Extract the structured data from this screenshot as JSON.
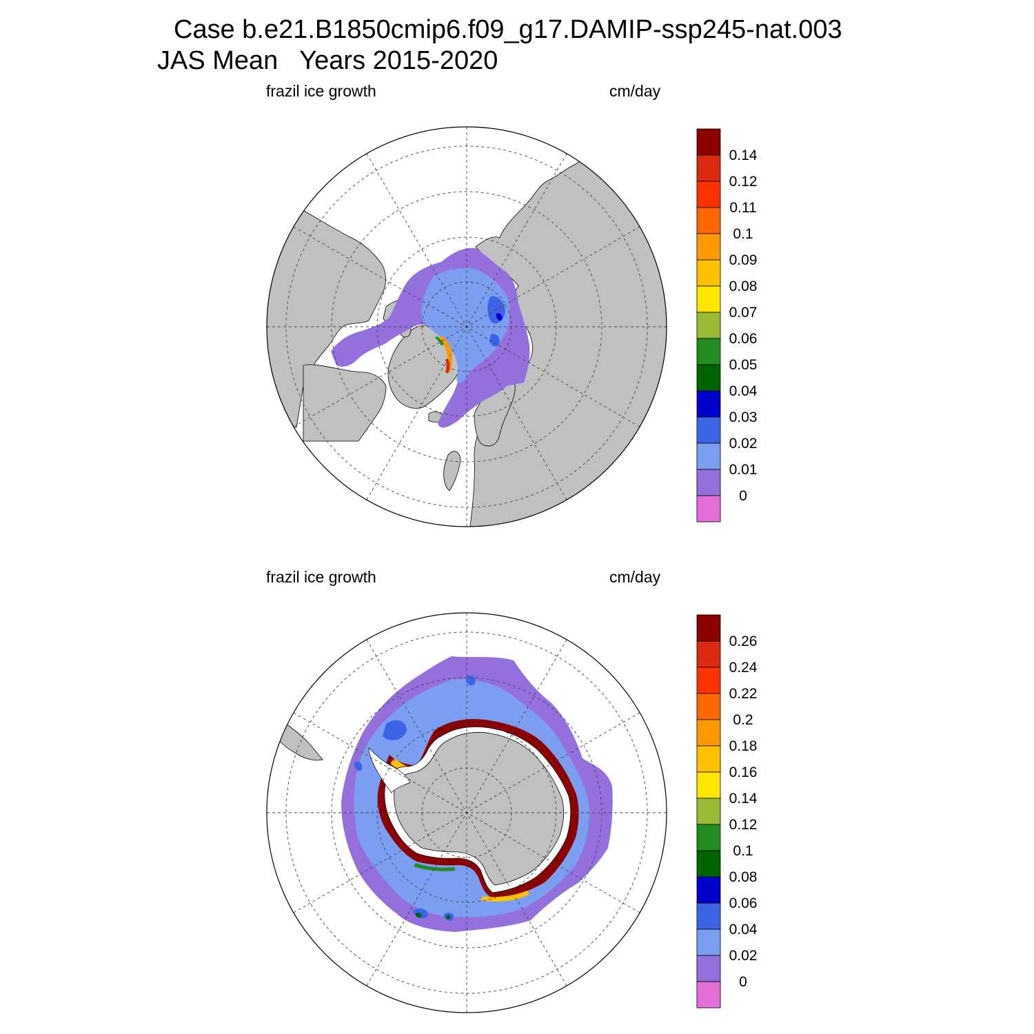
{
  "title": {
    "line1": "Case b.e21.B1850cmip6.f09_g17.DAMIP-ssp245-nat.003",
    "line2": "JAS Mean   Years 2015-2020"
  },
  "colors": {
    "land": "#c0c0c0",
    "ocean": "#ffffff",
    "outline": "#000000",
    "ice_shelf_white": "#ffffff",
    "palette": [
      "#e36fd6",
      "#9370db",
      "#7b9ef0",
      "#3c64e6",
      "#0000cd",
      "#006400",
      "#228b22",
      "#9aba34",
      "#ffe600",
      "#ffc000",
      "#ff9900",
      "#ff6600",
      "#ff3300",
      "#dc2a12",
      "#8b0000"
    ]
  },
  "panels": [
    {
      "id": "north",
      "left_label": "frazil ice growth",
      "right_label": "cm/day",
      "hemisphere": "Northern",
      "projection": "polar stereographic",
      "colorbar_levels": [
        "0.14",
        "0.12",
        "0.11",
        "0.1",
        "0.09",
        "0.08",
        "0.07",
        "0.06",
        "0.05",
        "0.04",
        "0.03",
        "0.02",
        "0.01",
        "0"
      ]
    },
    {
      "id": "south",
      "left_label": "frazil ice growth",
      "right_label": "cm/day",
      "hemisphere": "Southern",
      "projection": "polar stereographic",
      "colorbar_levels": [
        "0.26",
        "0.24",
        "0.22",
        "0.2",
        "0.18",
        "0.16",
        "0.14",
        "0.12",
        "0.1",
        "0.08",
        "0.06",
        "0.04",
        "0.02",
        "0"
      ]
    }
  ]
}
